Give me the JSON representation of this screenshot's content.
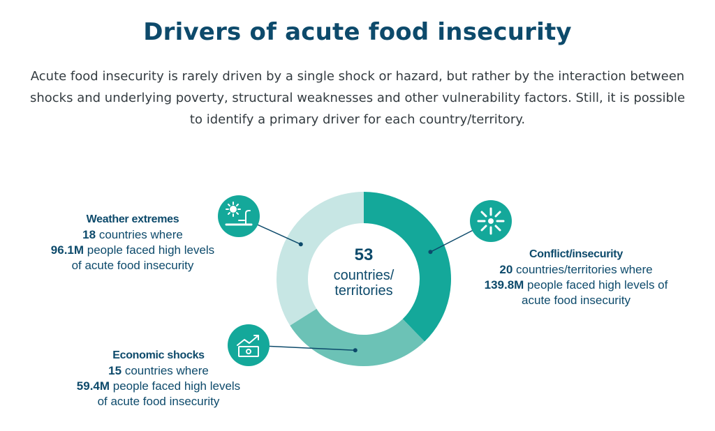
{
  "title": "Drivers of acute food insecurity",
  "intro": "Acute food insecurity is rarely driven by a single shock or hazard, but rather by the interaction between shocks and underlying poverty, structural weaknesses and other vulnerability factors. Still, it is possible to identify a primary driver for each country/territory.",
  "center": {
    "number": "53",
    "unit": "countries/ territories"
  },
  "drivers": [
    {
      "title": "Conflict/insecurity",
      "count": "20",
      "count_text": " countries/territories where",
      "people": "139.8M",
      "people_text": " people faced high levels of",
      "tail": "acute food insecurity",
      "icon": "explosion-icon"
    },
    {
      "title": "Weather extremes",
      "count": "18",
      "count_text": " countries where",
      "people": "96.1M",
      "people_text": " people faced high levels",
      "tail": "of acute food insecurity",
      "icon": "sun-and-tap-icon"
    },
    {
      "title": "Economic shocks",
      "count": "15",
      "count_text": " countries where",
      "people": "59.4M",
      "people_text": " people faced high levels",
      "tail": "of acute food insecurity",
      "icon": "cash-and-trend-icon"
    }
  ],
  "chart_data": {
    "type": "pie",
    "donut": true,
    "categories": [
      "Conflict/insecurity",
      "Economic shocks",
      "Weather extremes"
    ],
    "values": [
      20,
      15,
      18
    ],
    "colors": [
      "#14a89a",
      "#6cc2b6",
      "#c7e6e4"
    ],
    "total": 53
  }
}
